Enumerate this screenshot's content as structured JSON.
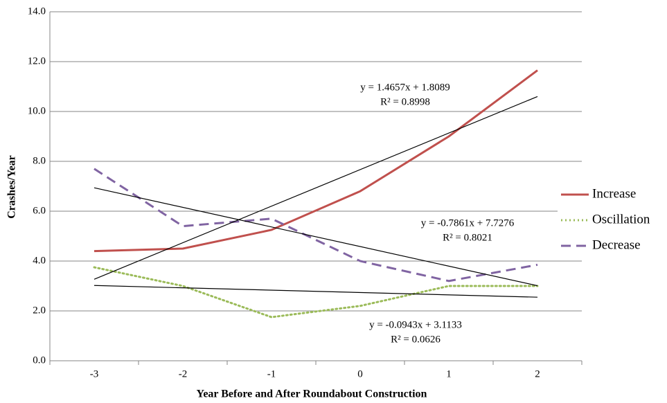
{
  "chart_data": {
    "type": "line",
    "x_label": "Year Before and After Roundabout Construction",
    "y_label": "Crashes/Year",
    "categories": [
      "-3",
      "-2",
      "-1",
      "0",
      "1",
      "2"
    ],
    "series": [
      {
        "name": "Increase",
        "color": "#c0504d",
        "dash": "solid",
        "values": [
          4.4,
          4.5,
          5.25,
          6.8,
          9.0,
          11.65
        ]
      },
      {
        "name": "Oscillation",
        "color": "#9bbb59",
        "dash": "dotted",
        "values": [
          3.75,
          3.0,
          1.75,
          2.2,
          3.0,
          3.0
        ]
      },
      {
        "name": "Decrease",
        "color": "#8064a2",
        "dash": "dashed",
        "values": [
          7.7,
          5.4,
          5.7,
          4.0,
          3.2,
          3.85
        ]
      }
    ],
    "trendlines": [
      {
        "color": "#000000",
        "equation": "y = 1.4657x + 1.8089",
        "r2": "R² = 0.8998",
        "values": [
          3.27,
          4.74,
          6.21,
          7.67,
          9.14,
          10.6
        ]
      },
      {
        "color": "#000000",
        "equation": "y = -0.7861x + 7.7276",
        "r2": "R² = 0.8021",
        "values": [
          6.94,
          6.16,
          5.37,
          4.58,
          3.8,
          3.01
        ]
      },
      {
        "color": "#000000",
        "equation": "y = -0.0943x + 3.1133",
        "r2": "R² = 0.0626",
        "values": [
          3.02,
          2.92,
          2.83,
          2.74,
          2.64,
          2.55
        ]
      }
    ],
    "ylim": [
      0,
      14
    ],
    "yticks": [
      {
        "value": 0,
        "label": "0.0"
      },
      {
        "value": 2,
        "label": "2.0"
      },
      {
        "value": 4,
        "label": "4.0"
      },
      {
        "value": 6,
        "label": "6.0"
      },
      {
        "value": 8,
        "label": "8.0"
      },
      {
        "value": 10,
        "label": "10.0"
      },
      {
        "value": 12,
        "label": "12.0"
      },
      {
        "value": 14,
        "label": "14.0"
      }
    ],
    "grid": true,
    "legend": "right"
  }
}
